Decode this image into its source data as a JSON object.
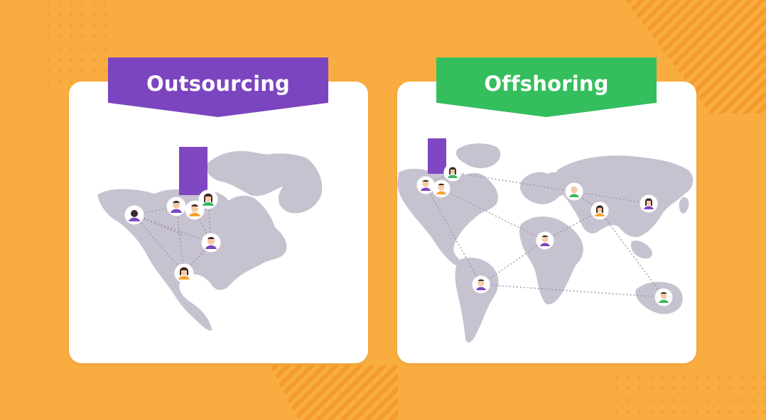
{
  "colors": {
    "background": "#F9AC3F",
    "stripe": "#F49B2B",
    "dot": "#F6A233",
    "card": "#FFFFFF",
    "map_land": "#C7C2CF",
    "pin": "#8047C2",
    "link_line": "#9A94A7",
    "avatar_skin": "#F6C9A4",
    "avatar_purple": "#7B46BE",
    "avatar_orange": "#F7A22E",
    "avatar_green": "#3DB763"
  },
  "outsourcing": {
    "title": "Outsourcing",
    "banner_color": "#7B45BF",
    "people_count": 7
  },
  "offshoring": {
    "title": "Offshoring",
    "banner_color": "#34BE5D",
    "people_count": 10
  }
}
